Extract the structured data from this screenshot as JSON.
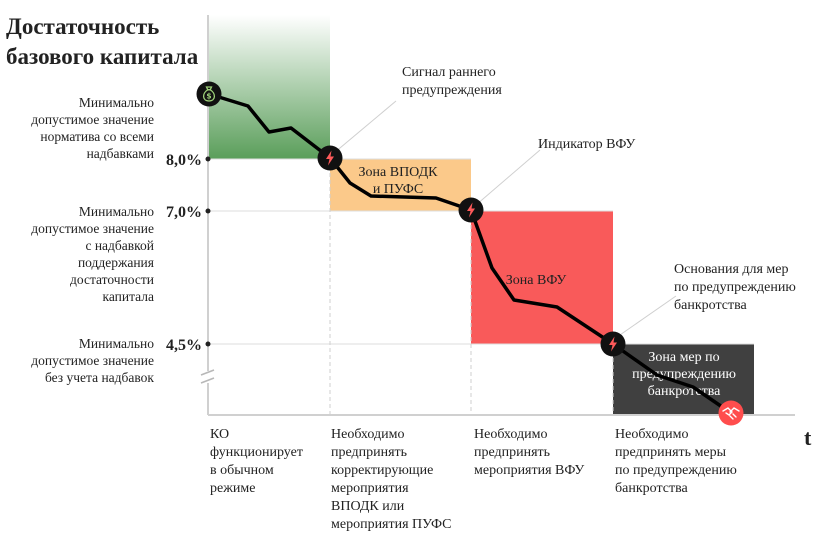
{
  "title_lines": [
    "Достаточность",
    "базового капитала"
  ],
  "axis_x_label": "t",
  "levels": [
    {
      "value_label": "8,0%",
      "desc_lines": [
        "Минимально",
        "допустимое значение",
        "норматива со всеми",
        "надбавками"
      ]
    },
    {
      "value_label": "7,0%",
      "desc_lines": [
        "Минимально",
        "допустимое значение",
        "с надбавкой",
        "поддержания",
        "достаточности",
        "капитала"
      ]
    },
    {
      "value_label": "4,5%",
      "desc_lines": [
        "Минимально",
        "допустимое значение",
        "без учета надбавок"
      ]
    }
  ],
  "zones": [
    {
      "label_lines": [
        "Зона ВПОДК",
        "и ПУФС"
      ],
      "color": "#fbc98a"
    },
    {
      "label_lines": [
        "Зона ВФУ"
      ],
      "color": "#f95a5a"
    },
    {
      "label_lines": [
        "Зона мер по",
        "предупреждению",
        "банкротства"
      ],
      "color": "#404040"
    }
  ],
  "signals": [
    {
      "label_lines": [
        "Сигнал раннего",
        "предупреждения"
      ]
    },
    {
      "label_lines": [
        "Индикатор ВФУ"
      ]
    },
    {
      "label_lines": [
        "Основания для мер",
        "по предупреждению",
        "банкротства"
      ]
    }
  ],
  "phases": [
    {
      "lines": [
        "КО",
        "функционирует",
        "в обычном",
        "режиме"
      ]
    },
    {
      "lines": [
        "Необходимо",
        "предпринять",
        "корректирующие",
        "мероприятия",
        "ВПОДК или",
        "мероприятия ПУФС"
      ]
    },
    {
      "lines": [
        "Необходимо",
        "предпринять",
        "мероприятия ВФУ"
      ]
    },
    {
      "lines": [
        "Необходимо",
        "предпринять меры",
        "по предупреждению",
        "банкротства"
      ]
    }
  ],
  "icons": {
    "start": "money-bag-icon",
    "signal": "lightning-icon",
    "end": "broken-handshake-icon"
  },
  "colors": {
    "normal_zone": "#5a9e5a",
    "line": "#000000",
    "signal_circle": "#111111",
    "signal_bolt": "#ff5a5a",
    "end_circle": "#ff4d4d"
  }
}
